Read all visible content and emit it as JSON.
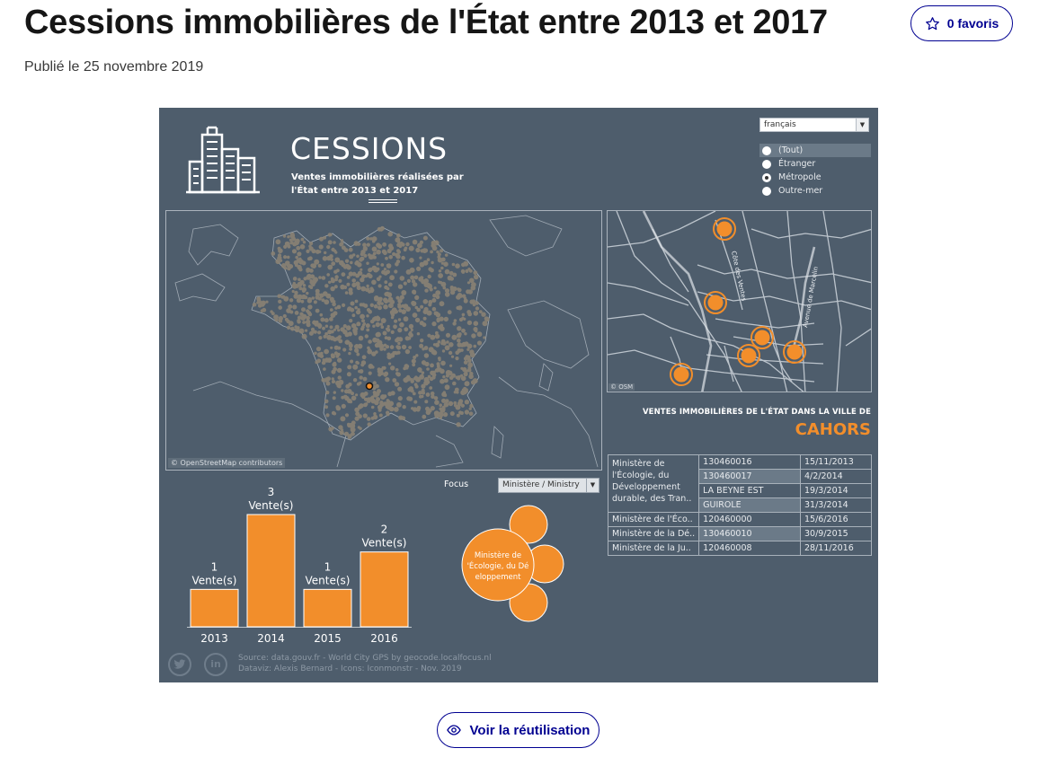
{
  "page": {
    "title": "Cessions immobilières de l'État entre 2013 et 2017",
    "published": "Publié le 25 novembre 2019",
    "favorites_label": "0 favoris",
    "reuse_button": "Voir la réutilisation"
  },
  "dashboard": {
    "title": "CESSIONS",
    "subtitle": "Ventes immobilières réalisées par l'État entre 2013 et 2017",
    "language": "français",
    "region_filter": {
      "options": [
        "(Tout)",
        "Étranger",
        "Métropole",
        "Outre-mer"
      ],
      "selected": "Métropole"
    },
    "map_credit": "© OpenStreetMap contributors",
    "osm_short": "© OSM",
    "city_map_labels": [
      "Côte des Ventes",
      "Avenue de Marcelin"
    ],
    "ventes_title": "VENTES IMMOBILIÈRES DE L'ÉTAT DANS LA VILLE DE",
    "city": "CAHORS",
    "table": [
      {
        "ministry": "Ministère de l'Écologie, du Développement durable, des Tran..",
        "ref": "130460016",
        "date": "15/11/2013"
      },
      {
        "ministry": "",
        "ref": "130460017",
        "date": "4/2/2014"
      },
      {
        "ministry": "",
        "ref": "LA BEYNE EST",
        "date": "19/3/2014"
      },
      {
        "ministry": "",
        "ref": "GUIROLE",
        "date": "31/3/2014"
      },
      {
        "ministry": "Ministère de l'Éco..",
        "ref": "120460000",
        "date": "15/6/2016"
      },
      {
        "ministry": "Ministère de la Dé..",
        "ref": "130460010",
        "date": "30/9/2015"
      },
      {
        "ministry": "Ministère de la Ju..",
        "ref": "120460008",
        "date": "28/11/2016"
      }
    ],
    "focus_label": "Focus",
    "focus_value": "Ministère / Ministry",
    "bubble_label": "Ministère de l'Écologie, du Développement",
    "source_line1": "Source: data.gouv.fr - World City GPS by geocode.localfocus.nl",
    "source_line2": "Dataviz: Alexis Bernard - Icons: Iconmonstr - Nov. 2019",
    "social": {
      "twitter": "twitter-icon",
      "linkedin": "in"
    },
    "colors": {
      "background": "#4e5d6c",
      "accent": "#f28e2b",
      "dots": "#8a8274"
    }
  },
  "chart_data": {
    "type": "bar",
    "categories": [
      "2013",
      "2014",
      "2015",
      "2016"
    ],
    "values": [
      1,
      3,
      1,
      2
    ],
    "value_suffix": "Vente(s)",
    "ylim": [
      0,
      3
    ],
    "grid": false,
    "color": "#f28e2b"
  }
}
